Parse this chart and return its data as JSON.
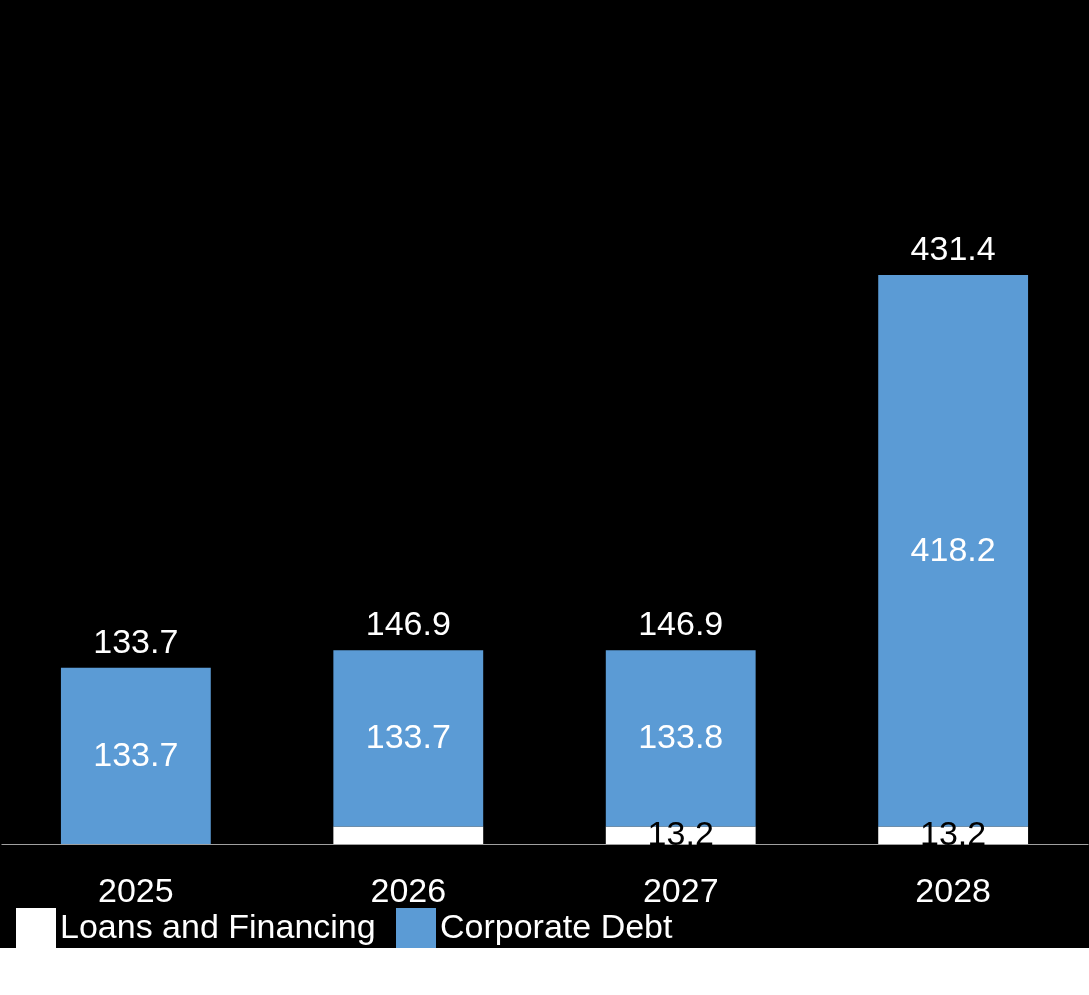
{
  "chart_data": {
    "type": "bar",
    "stacked": true,
    "categories": [
      "2025",
      "2026",
      "2027",
      "2028"
    ],
    "series": [
      {
        "name": "Loans and Financing",
        "color": "#ffffff",
        "values": [
          null,
          13.2,
          13.2,
          13.2
        ],
        "value_labels": [
          null,
          null,
          "13.2",
          "13.2"
        ]
      },
      {
        "name": "Corporate Debt",
        "color": "#5b9bd5",
        "values": [
          133.7,
          133.7,
          133.8,
          418.2
        ],
        "value_labels": [
          "133.7",
          "133.7",
          "133.8",
          "418.2"
        ]
      }
    ],
    "totals": [
      "133.7",
      "146.9",
      "146.9",
      "431.4"
    ],
    "ylim": [
      0,
      640
    ],
    "tick_labels": "x",
    "grid": false,
    "legend": "bottom left"
  }
}
